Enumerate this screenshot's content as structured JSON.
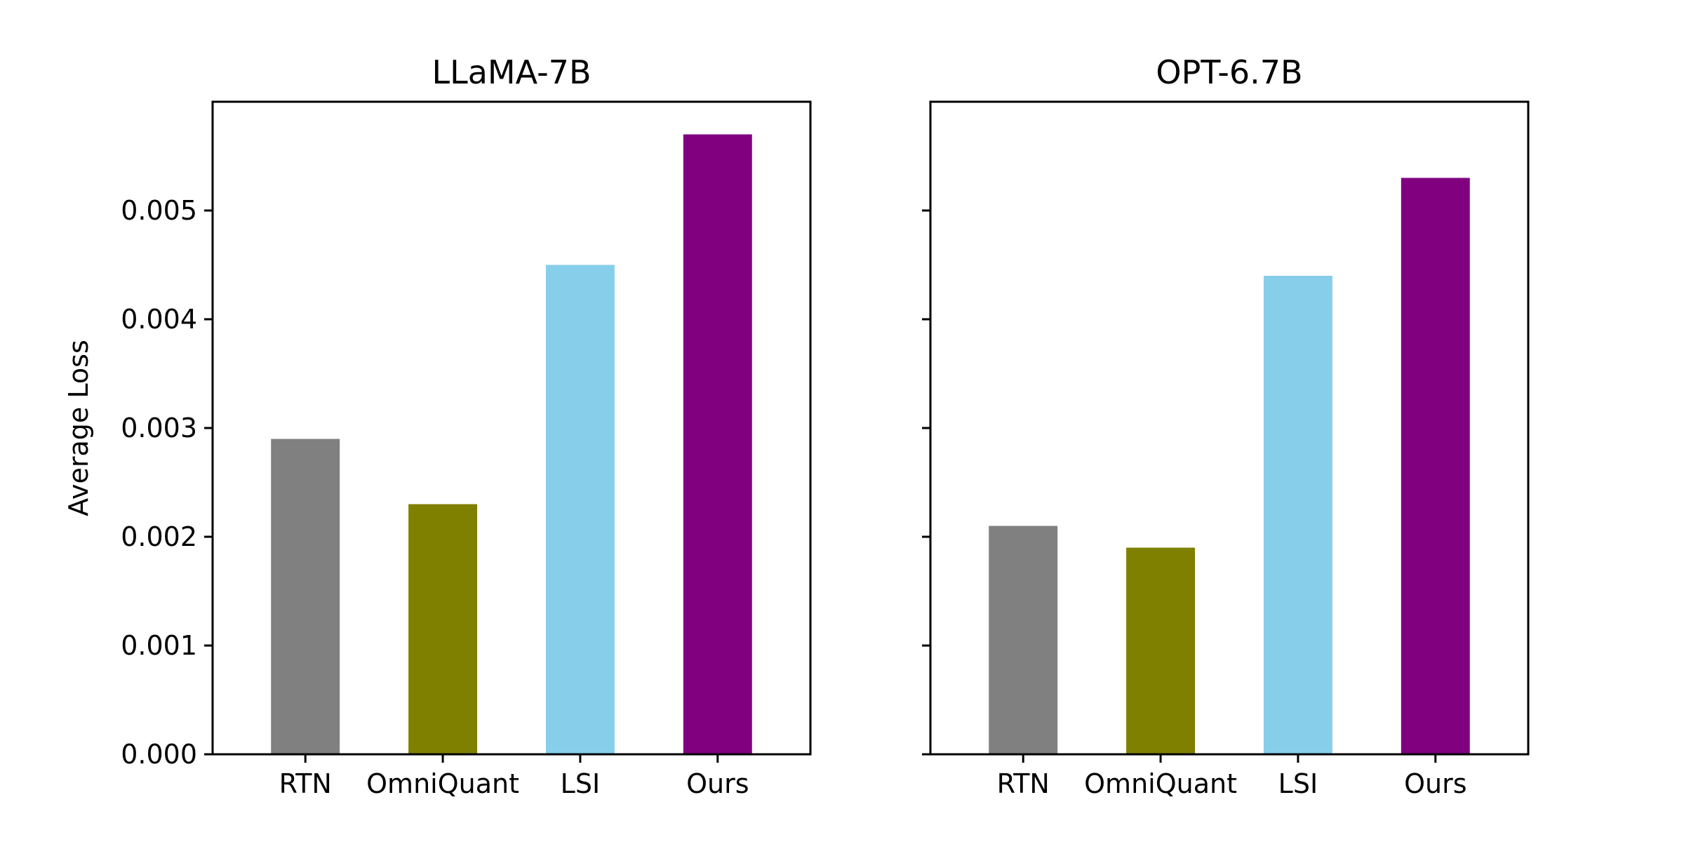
{
  "chart_data": [
    {
      "type": "bar",
      "title": "LLaMA-7B",
      "ylabel": "Average Loss",
      "xlabel": "",
      "categories": [
        "RTN",
        "OmniQuant",
        "LSI",
        "Ours"
      ],
      "values": [
        0.0029,
        0.0023,
        0.0045,
        0.0057
      ],
      "colors": [
        "#808080",
        "#808000",
        "#87CEEB",
        "#800080"
      ],
      "ylim": [
        0,
        0.006
      ],
      "yticks": [
        "0.000",
        "0.001",
        "0.002",
        "0.003",
        "0.004",
        "0.005"
      ],
      "show_ytick_labels": true,
      "grid": false
    },
    {
      "type": "bar",
      "title": "OPT-6.7B",
      "ylabel": "",
      "xlabel": "",
      "categories": [
        "RTN",
        "OmniQuant",
        "LSI",
        "Ours"
      ],
      "values": [
        0.0021,
        0.0019,
        0.0044,
        0.0053
      ],
      "colors": [
        "#808080",
        "#808000",
        "#87CEEB",
        "#800080"
      ],
      "ylim": [
        0,
        0.006
      ],
      "yticks": [
        "0.000",
        "0.001",
        "0.002",
        "0.003",
        "0.004",
        "0.005"
      ],
      "show_ytick_labels": false,
      "grid": false
    }
  ]
}
